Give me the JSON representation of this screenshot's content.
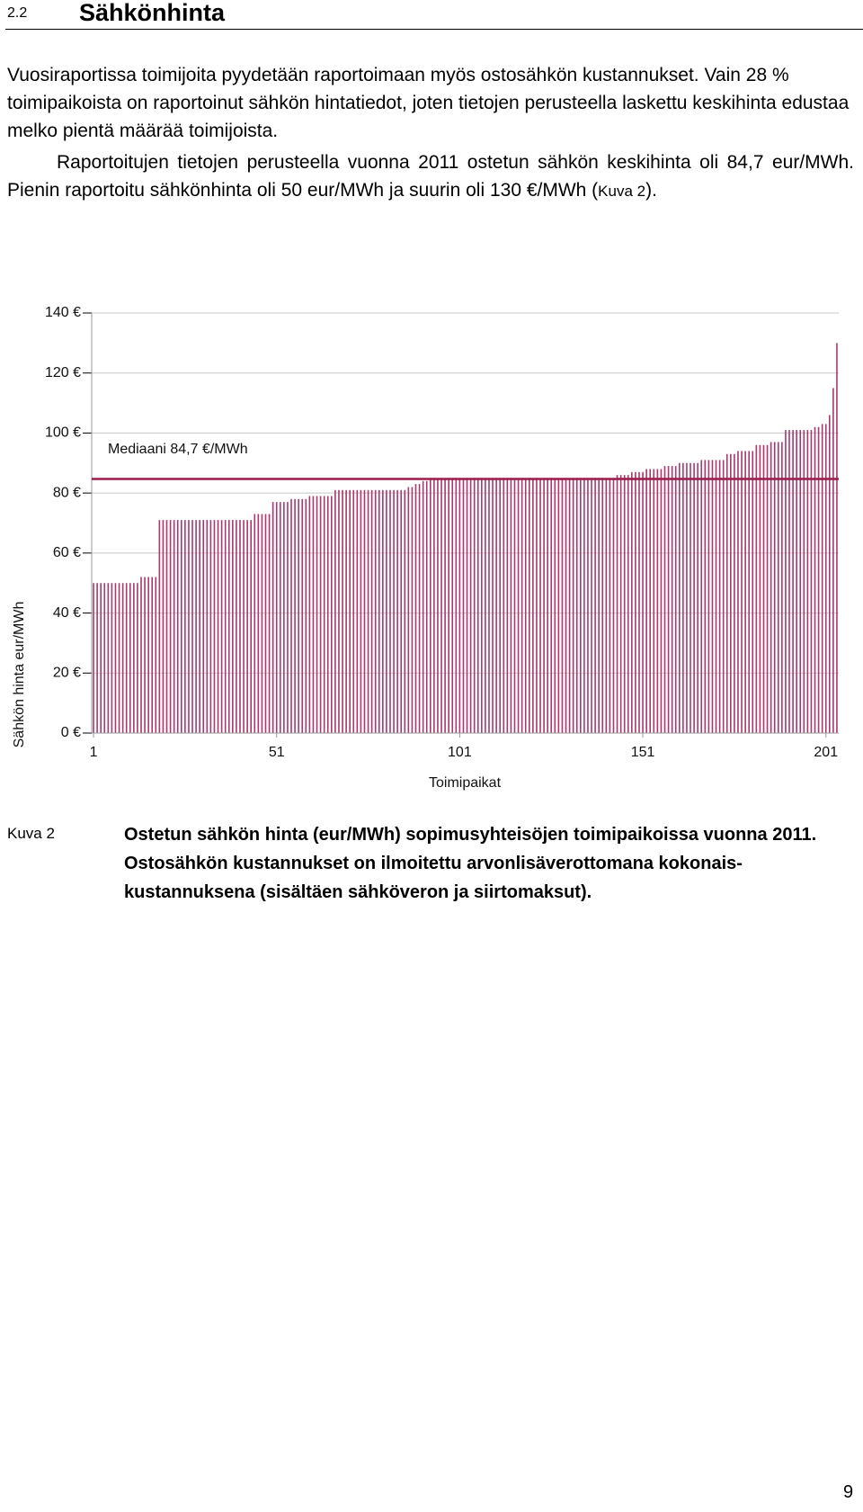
{
  "header": {
    "number": "2.2",
    "title": "Sähkönhinta"
  },
  "paragraphs": [
    {
      "text": "Vuosiraportissa toimijoita pyydetään raportoimaan myös ostosähkön kustannukset. Vain 28 % toimipaikoista on raportoinut sähkön hintatiedot, joten tietojen perusteella laskettu keskihinta edustaa melko pientä määrää toimijoista."
    },
    {
      "text": "Raportoitujen tietojen perusteella vuonna 2011 ostetun sähkön keskihinta oli 84,7 eur/MWh. Pienin raportoitu sähkönhinta oli 50 eur/MWh ja suurin oli 130 €/MWh (",
      "ref": "Kuva 2",
      "end": ")."
    }
  ],
  "chart_data": {
    "type": "bar",
    "x_label": "Toimipaikat",
    "y_label": "Sähkön hinta eur/MWh",
    "annotation": "Mediaani 84,7 €/MWh",
    "median": 84.7,
    "median_color": "#9b1b4b",
    "color": "#a8386f",
    "grid": true,
    "xlim": [
      0.5,
      204.5
    ],
    "xticks": [
      1,
      51,
      101,
      151,
      201
    ],
    "ylim": [
      0,
      140
    ],
    "yticks": [
      {
        "value": 0,
        "label": "0 €"
      },
      {
        "value": 20,
        "label": "20 €"
      },
      {
        "value": 40,
        "label": "40 €"
      },
      {
        "value": 60,
        "label": "60 €"
      },
      {
        "value": 80,
        "label": "80 €"
      },
      {
        "value": 100,
        "label": "100 €"
      },
      {
        "value": 120,
        "label": "120 €"
      },
      {
        "value": 140,
        "label": "140 €"
      }
    ],
    "x": [
      1,
      2,
      3,
      4,
      5,
      6,
      7,
      8,
      9,
      10,
      11,
      12,
      13,
      14,
      15,
      16,
      17,
      18,
      19,
      20,
      21,
      22,
      23,
      24,
      25,
      26,
      27,
      28,
      29,
      30,
      31,
      32,
      33,
      34,
      35,
      36,
      37,
      38,
      39,
      40,
      41,
      42,
      43,
      44,
      45,
      46,
      47,
      48,
      49,
      50,
      51,
      52,
      53,
      54,
      55,
      56,
      57,
      58,
      59,
      60,
      61,
      62,
      63,
      64,
      65,
      66,
      67,
      68,
      69,
      70,
      71,
      72,
      73,
      74,
      75,
      76,
      77,
      78,
      79,
      80,
      81,
      82,
      83,
      84,
      85,
      86,
      87,
      88,
      89,
      90,
      91,
      92,
      93,
      94,
      95,
      96,
      97,
      98,
      99,
      100,
      101,
      102,
      103,
      104,
      105,
      106,
      107,
      108,
      109,
      110,
      111,
      112,
      113,
      114,
      115,
      116,
      117,
      118,
      119,
      120,
      121,
      122,
      123,
      124,
      125,
      126,
      127,
      128,
      129,
      130,
      131,
      132,
      133,
      134,
      135,
      136,
      137,
      138,
      139,
      140,
      141,
      142,
      143,
      144,
      145,
      146,
      147,
      148,
      149,
      150,
      151,
      152,
      153,
      154,
      155,
      156,
      157,
      158,
      159,
      160,
      161,
      162,
      163,
      164,
      165,
      166,
      167,
      168,
      169,
      170,
      171,
      172,
      173,
      174,
      175,
      176,
      177,
      178,
      179,
      180,
      181,
      182,
      183,
      184,
      185,
      186,
      187,
      188,
      189,
      190,
      191,
      192,
      193,
      194,
      195,
      196,
      197,
      198,
      199,
      200,
      201,
      202,
      203,
      204
    ],
    "values": [
      50,
      50,
      50,
      50,
      50,
      50,
      50,
      50,
      50,
      50,
      50,
      50,
      50,
      52,
      52,
      52,
      52,
      52,
      71,
      71,
      71,
      71,
      71,
      71,
      71,
      71,
      71,
      71,
      71,
      71,
      71,
      71,
      71,
      71,
      71,
      71,
      71,
      71,
      71,
      71,
      71,
      71,
      71,
      71,
      73,
      73,
      73,
      73,
      73,
      77,
      77,
      77,
      77,
      77,
      78,
      78,
      78,
      78,
      78,
      79,
      79,
      79,
      79,
      79,
      79,
      79,
      81,
      81,
      81,
      81,
      81,
      81,
      81,
      81,
      81,
      81,
      81,
      81,
      81,
      81,
      81,
      81,
      81,
      81,
      81,
      81,
      82,
      82,
      83,
      83,
      84,
      84,
      85,
      85,
      85,
      85,
      85,
      85,
      85,
      85,
      85,
      85,
      85,
      85,
      85,
      85,
      85,
      85,
      85,
      85,
      85,
      85,
      85,
      85,
      85,
      85,
      85,
      85,
      85,
      85,
      85,
      85,
      85,
      85,
      85,
      85,
      85,
      85,
      85,
      85,
      85,
      85,
      85,
      85,
      85,
      85,
      85,
      85,
      85,
      85,
      85,
      85,
      85,
      86,
      86,
      86,
      86,
      87,
      87,
      87,
      87,
      88,
      88,
      88,
      88,
      88,
      89,
      89,
      89,
      89,
      90,
      90,
      90,
      90,
      90,
      90,
      91,
      91,
      91,
      91,
      91,
      91,
      91,
      93,
      93,
      93,
      94,
      94,
      94,
      94,
      94,
      96,
      96,
      96,
      96,
      97,
      97,
      97,
      97,
      101,
      101,
      101,
      101,
      101,
      101,
      101,
      101,
      102,
      102,
      103,
      103,
      106,
      115,
      130
    ]
  },
  "caption": {
    "label": "Kuva 2",
    "text": "Ostetun sähkön hinta (eur/MWh) sopimusyhteisöjen toimipaikoissa vuonna 2011. Ostosähkön kustannukset on ilmoitettu arvonlisäverottomana kokonais-kustannuksena (sisältäen sähköveron ja siirtomaksut)."
  },
  "page_number": "9"
}
